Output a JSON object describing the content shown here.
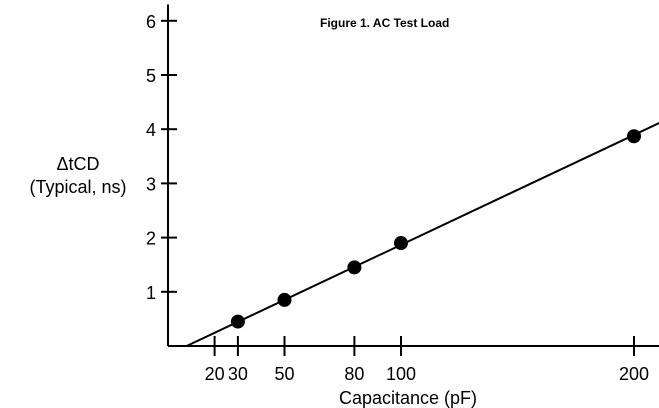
{
  "chart_data": {
    "type": "scatter",
    "title": "Figure 1. AC Test Load",
    "xlabel": "Capacitance (pF)",
    "ylabel_line1": "ΔtCD",
    "ylabel_line2": "(Typical, ns)",
    "x_ticks": [
      20,
      30,
      50,
      80,
      100,
      200
    ],
    "y_ticks": [
      1,
      2,
      3,
      4,
      5,
      6
    ],
    "xlim": [
      0,
      220
    ],
    "ylim": [
      0,
      6.3
    ],
    "points": [
      {
        "x": 30,
        "y": 0.45
      },
      {
        "x": 50,
        "y": 0.85
      },
      {
        "x": 80,
        "y": 1.45
      },
      {
        "x": 100,
        "y": 1.9
      },
      {
        "x": 200,
        "y": 3.87
      }
    ],
    "fit_line": {
      "x_start": 8,
      "y_start": 0.0,
      "x_end": 220,
      "y_end": 4.3
    },
    "grid": false,
    "legend": "none",
    "colors": {
      "marker": "#000000",
      "line": "#000000"
    }
  }
}
